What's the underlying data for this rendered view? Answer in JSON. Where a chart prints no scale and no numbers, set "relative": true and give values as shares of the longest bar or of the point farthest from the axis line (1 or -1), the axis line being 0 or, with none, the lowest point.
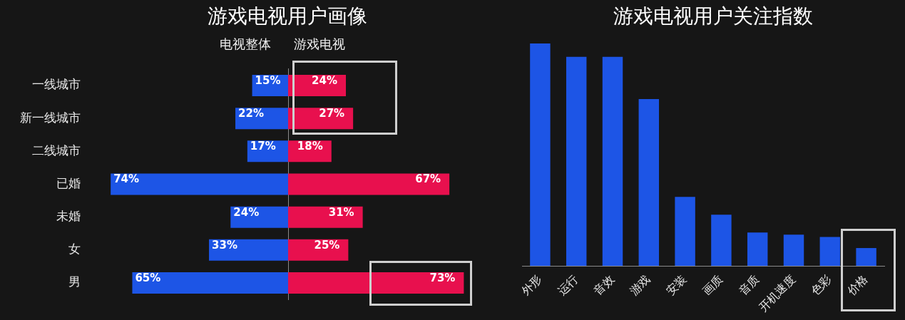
{
  "chart_data": [
    {
      "type": "bar",
      "orientation": "horizontal",
      "title": "游戏电视用户画像",
      "categories": [
        "一线城市",
        "新一线城市",
        "二线城市",
        "已婚",
        "未婚",
        "女",
        "男"
      ],
      "tick_labels": "y",
      "series": [
        {
          "name": "电视整体",
          "color": "#1d55e6",
          "values": [
            15,
            22,
            17,
            74,
            24,
            33,
            65
          ],
          "value_labels": [
            "15%",
            "22%",
            "17%",
            "74%",
            "24%",
            "33%",
            "65%"
          ]
        }
      ]
    },
    {
      "type": "bar",
      "orientation": "horizontal",
      "tick_labels": false,
      "series": [
        {
          "name": "游戏电视",
          "color": "#e8104e",
          "values": [
            24,
            27,
            18,
            67,
            31,
            25,
            73
          ],
          "value_labels": [
            "24%",
            "27%",
            "18%",
            "67%",
            "31%",
            "25%",
            "73%"
          ]
        }
      ]
    },
    {
      "type": "bar",
      "title": "游戏电视用户关注指数",
      "relative": true,
      "categories": [
        "外形",
        "运行",
        "音效",
        "游戏",
        "安装",
        "画质",
        "音质",
        "开机速度",
        "色彩",
        "价格"
      ],
      "values": [
        1,
        0.94,
        0.94,
        0.75,
        0.31,
        0.23,
        0.15,
        0.14,
        0.13,
        0.08
      ],
      "color": "#1d55e6"
    }
  ]
}
